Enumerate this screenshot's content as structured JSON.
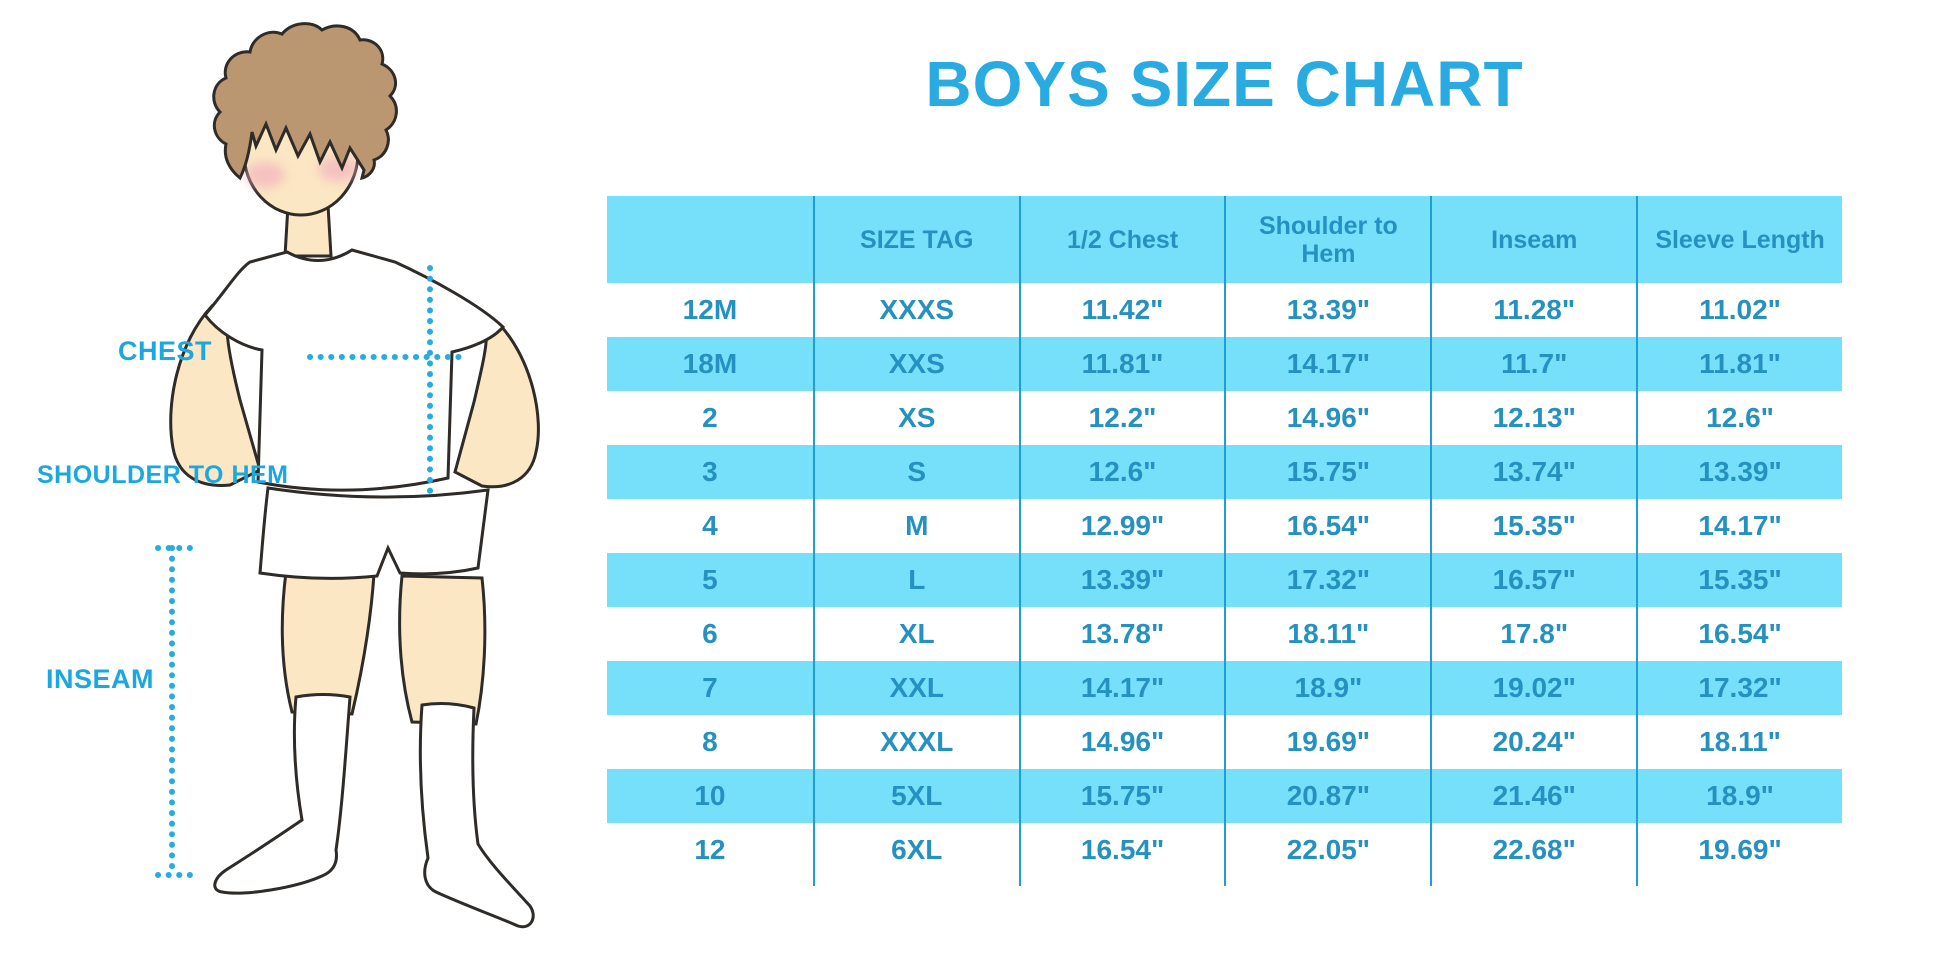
{
  "title": "BOYS SIZE CHART",
  "figure": {
    "description": "cartoon boy in white t-shirt, shorts and knee socks with dotted measurement guides",
    "labels": {
      "chest": "CHEST",
      "shoulder_to_hem": "SHOULDER TO HEM",
      "inseam": "INSEAM"
    }
  },
  "chart_data": {
    "type": "table",
    "title": "BOYS SIZE CHART",
    "columns": [
      "",
      "SIZE TAG",
      "1/2 Chest",
      "Shoulder to Hem",
      "Inseam",
      "Sleeve Length"
    ],
    "rows": [
      [
        "12M",
        "XXXS",
        "11.42\"",
        "13.39\"",
        "11.28\"",
        "11.02\""
      ],
      [
        "18M",
        "XXS",
        "11.81\"",
        "14.17\"",
        "11.7\"",
        "11.81\""
      ],
      [
        "2",
        "XS",
        "12.2\"",
        "14.96\"",
        "12.13\"",
        "12.6\""
      ],
      [
        "3",
        "S",
        "12.6\"",
        "15.75\"",
        "13.74\"",
        "13.39\""
      ],
      [
        "4",
        "M",
        "12.99\"",
        "16.54\"",
        "15.35\"",
        "14.17\""
      ],
      [
        "5",
        "L",
        "13.39\"",
        "17.32\"",
        "16.57\"",
        "15.35\""
      ],
      [
        "6",
        "XL",
        "13.78\"",
        "18.11\"",
        "17.8\"",
        "16.54\""
      ],
      [
        "7",
        "XXL",
        "14.17\"",
        "18.9\"",
        "19.02\"",
        "17.32\""
      ],
      [
        "8",
        "XXXL",
        "14.96\"",
        "19.69\"",
        "20.24\"",
        "18.11\""
      ],
      [
        "10",
        "5XL",
        "15.75\"",
        "20.87\"",
        "21.46\"",
        "18.9\""
      ],
      [
        "12",
        "6XL",
        "16.54\"",
        "22.05\"",
        "22.68\"",
        "19.69\""
      ]
    ],
    "layout": {
      "grid": "vertical dividers only",
      "row_striping": "white / light-cyan alternating, header cyan",
      "legend_position": "none"
    }
  },
  "colors": {
    "accent": "#29ABE2",
    "title_text": "#29ABE2",
    "label_text": "#1BA8E1",
    "header_bg": "#76E0FB",
    "row_alt_bg": "#76E0FB",
    "divider": "#1E9ED3",
    "table_text": "#2591C1",
    "skin": "#FBE7C3",
    "hair": "#BA9770",
    "blush": "#F2AFBF",
    "outline": "#2E2B28",
    "clothes": "#FFFFFF"
  }
}
